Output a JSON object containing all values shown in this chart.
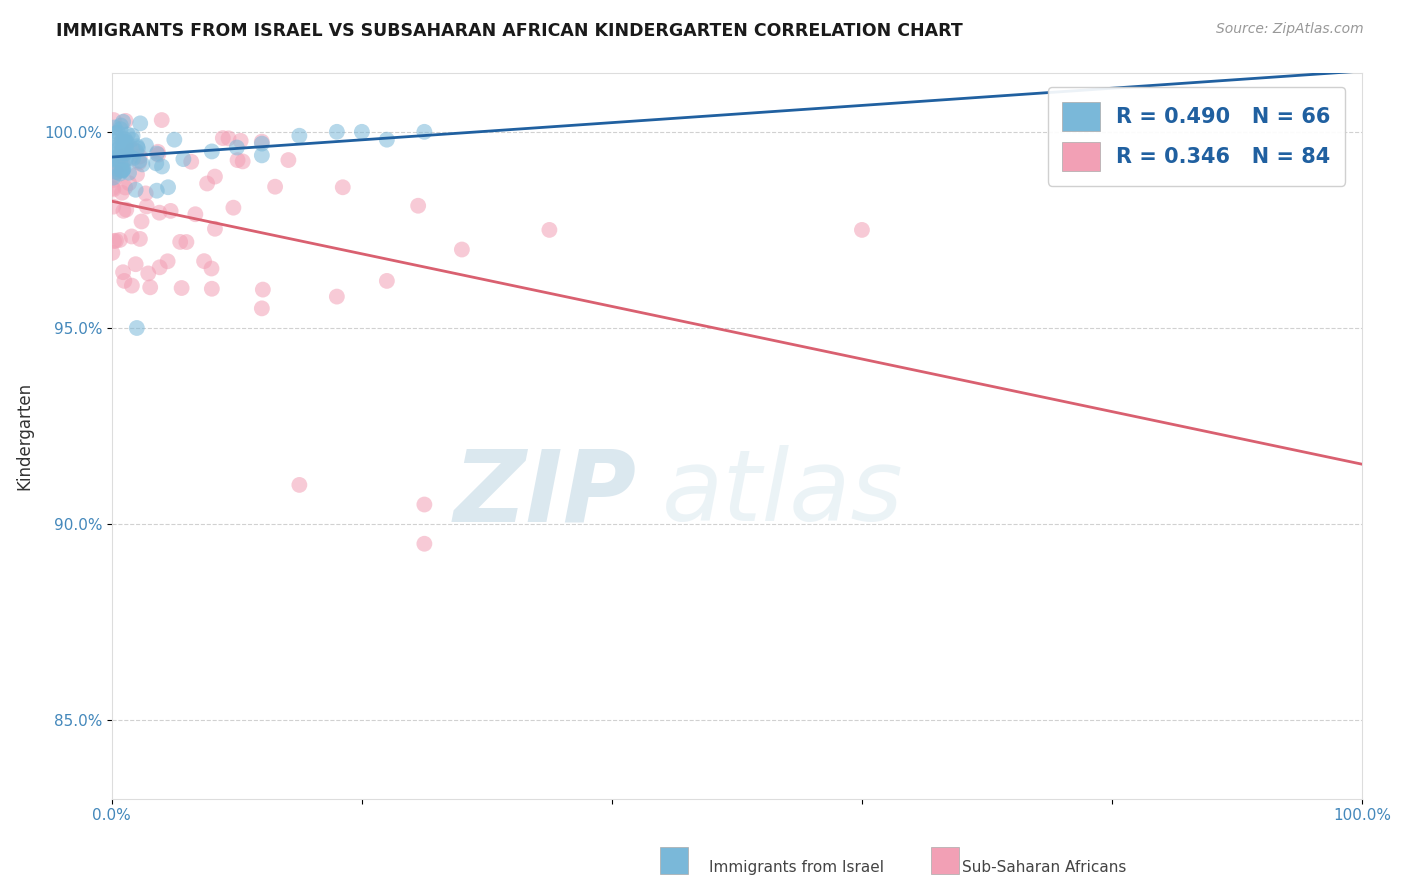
{
  "title": "IMMIGRANTS FROM ISRAEL VS SUBSAHARAN AFRICAN KINDERGARTEN CORRELATION CHART",
  "source_text": "Source: ZipAtlas.com",
  "ylabel": "Kindergarten",
  "xlim": [
    0,
    100
  ],
  "ylim": [
    83,
    101.5
  ],
  "yticks": [
    85,
    90,
    95,
    100
  ],
  "ytick_labels": [
    "85.0%",
    "90.0%",
    "95.0%",
    "100.0%"
  ],
  "xticks": [
    0,
    20,
    40,
    60,
    80,
    100
  ],
  "xtick_labels": [
    "0.0%",
    "",
    "",
    "",
    "",
    "100.0%"
  ],
  "series1_color": "#7ab8d9",
  "series2_color": "#f2a0b5",
  "line1_color": "#2060a0",
  "line2_color": "#d96070",
  "watermark_zip": "ZIP",
  "watermark_atlas": "atlas",
  "background_color": "#ffffff",
  "series1_label": "Immigrants from Israel",
  "series2_label": "Sub-Saharan Africans",
  "legend_text1": "R = 0.490   N = 66",
  "legend_text2": "R = 0.346   N = 84",
  "legend_color": "#2060a0",
  "seed": 7
}
